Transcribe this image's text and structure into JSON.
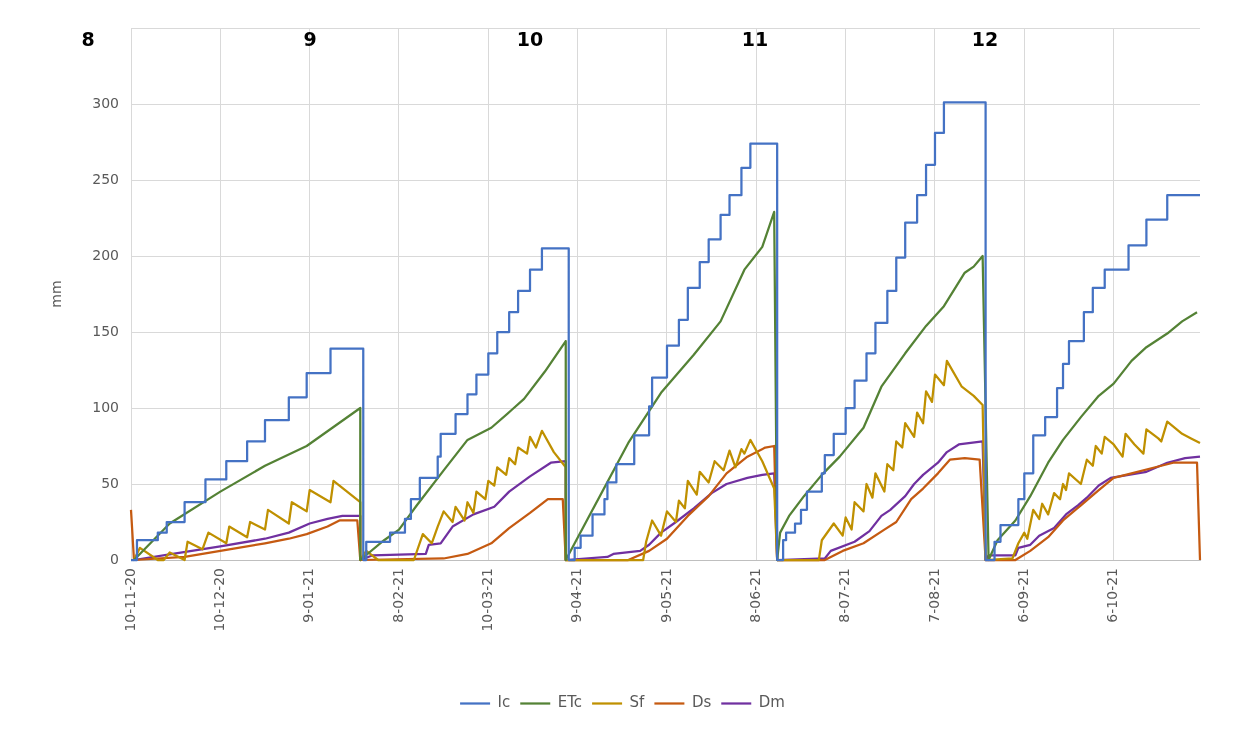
{
  "chart_data": {
    "type": "line",
    "ylabel": "mm",
    "ylim": [
      0,
      350
    ],
    "yticks": [
      0,
      50,
      100,
      150,
      200,
      250,
      300,
      {
        "value": 350,
        "label": null
      }
    ],
    "xlim": [
      "2020-11-10",
      "2021-11-04"
    ],
    "xticks": [
      {
        "value": "2020-11-10",
        "label": "10-11-20"
      },
      {
        "value": "2020-12-10",
        "label": "10-12-20"
      },
      {
        "value": "2021-01-09",
        "label": "9-01-21"
      },
      {
        "value": "2021-02-08",
        "label": "8-02-21"
      },
      {
        "value": "2021-03-10",
        "label": "10-03-21"
      },
      {
        "value": "2021-04-09",
        "label": "9-04-21"
      },
      {
        "value": "2021-05-09",
        "label": "9-05-21"
      },
      {
        "value": "2021-06-08",
        "label": "8-06-21"
      },
      {
        "value": "2021-07-08",
        "label": "8-07-21"
      },
      {
        "value": "2021-08-07",
        "label": "7-08-21"
      },
      {
        "value": "2021-09-06",
        "label": "6-09-21"
      },
      {
        "value": "2021-10-06",
        "label": "6-10-21"
      }
    ],
    "grid": true,
    "legend": "bottom",
    "marker": "none",
    "annotations": [
      "8",
      "9",
      "10",
      "11",
      "12"
    ],
    "series": [
      {
        "name": "Ic",
        "type": "step",
        "color": "#4472c4",
        "x": [
          "2020-11-10",
          "2020-11-12",
          "2020-11-19",
          "2020-11-22",
          "2020-11-28",
          "2020-12-05",
          "2020-12-12",
          "2020-12-19",
          "2020-12-25",
          "2021-01-02",
          "2021-01-08",
          "2021-01-16",
          "2021-01-26",
          "2021-01-27",
          "2021-01-28",
          "2021-02-05",
          "2021-02-10",
          "2021-02-12",
          "2021-02-15",
          "2021-02-21",
          "2021-02-22",
          "2021-02-27",
          "2021-03-03",
          "2021-03-06",
          "2021-03-10",
          "2021-03-13",
          "2021-03-17",
          "2021-03-20",
          "2021-03-24",
          "2021-03-28",
          "2021-04-05",
          "2021-04-06",
          "2021-04-08",
          "2021-04-10",
          "2021-04-14",
          "2021-04-18",
          "2021-04-19",
          "2021-04-22",
          "2021-04-28",
          "2021-05-03",
          "2021-05-04",
          "2021-05-09",
          "2021-05-13",
          "2021-05-16",
          "2021-05-20",
          "2021-05-23",
          "2021-05-27",
          "2021-05-30",
          "2021-06-03",
          "2021-06-06",
          "2021-06-14",
          "2021-06-15",
          "2021-06-17",
          "2021-06-18",
          "2021-06-21",
          "2021-06-23",
          "2021-06-25",
          "2021-06-30",
          "2021-07-01",
          "2021-07-04",
          "2021-07-08",
          "2021-07-11",
          "2021-07-15",
          "2021-07-18",
          "2021-07-22",
          "2021-07-25",
          "2021-07-28",
          "2021-08-01",
          "2021-08-04",
          "2021-08-07",
          "2021-08-10",
          "2021-08-23",
          "2021-08-24",
          "2021-08-27",
          "2021-08-29",
          "2021-09-04",
          "2021-09-06",
          "2021-09-09",
          "2021-09-13",
          "2021-09-17",
          "2021-09-19",
          "2021-09-21",
          "2021-09-26",
          "2021-09-29",
          "2021-10-03",
          "2021-10-11",
          "2021-10-17",
          "2021-10-24",
          "2021-11-04"
        ],
        "values": [
          0,
          13,
          18,
          25,
          38,
          53,
          65,
          78,
          92,
          107,
          123,
          139,
          139,
          0,
          12,
          18,
          27,
          40,
          54,
          68,
          83,
          96,
          109,
          122,
          136,
          150,
          163,
          177,
          191,
          205,
          205,
          0,
          8,
          16,
          30,
          40,
          51,
          63,
          82,
          101,
          120,
          141,
          158,
          179,
          196,
          211,
          227,
          240,
          258,
          274,
          274,
          0,
          13,
          18,
          24,
          33,
          45,
          57,
          69,
          83,
          100,
          118,
          136,
          156,
          177,
          199,
          222,
          240,
          260,
          281,
          301,
          301,
          0,
          12,
          23,
          40,
          57,
          82,
          94,
          113,
          129,
          144,
          163,
          179,
          191,
          207,
          224,
          240,
          240
        ]
      },
      {
        "name": "ETc",
        "color": "#548235",
        "x": [
          "2020-11-11",
          "2020-11-23",
          "2020-12-10",
          "2020-12-25",
          "2021-01-08",
          "2021-01-26",
          "2021-01-26",
          "2021-02-03",
          "2021-02-08",
          "2021-02-14",
          "2021-02-23",
          "2021-03-03",
          "2021-03-11",
          "2021-03-18",
          "2021-03-22",
          "2021-03-29",
          "2021-04-05",
          "2021-04-05",
          "2021-04-14",
          "2021-04-26",
          "2021-05-07",
          "2021-05-18",
          "2021-05-27",
          "2021-06-04",
          "2021-06-10",
          "2021-06-14",
          "2021-06-15",
          "2021-06-16",
          "2021-06-19",
          "2021-06-24",
          "2021-06-30",
          "2021-07-06",
          "2021-07-14",
          "2021-07-20",
          "2021-07-28",
          "2021-08-04",
          "2021-08-10",
          "2021-08-17",
          "2021-08-20",
          "2021-08-23",
          "2021-08-25",
          "2021-08-28",
          "2021-09-03",
          "2021-09-08",
          "2021-09-14",
          "2021-09-19",
          "2021-09-25",
          "2021-10-01",
          "2021-10-06",
          "2021-10-12",
          "2021-10-17",
          "2021-10-24",
          "2021-10-29",
          "2021-11-03"
        ],
        "values": [
          0,
          24,
          45,
          62,
          75,
          100,
          0,
          13,
          20,
          36,
          59,
          79,
          87,
          99,
          106,
          124,
          144,
          0,
          33,
          77,
          110,
          135,
          157,
          191,
          206,
          229,
          0,
          18,
          29,
          42,
          56,
          68,
          87,
          114,
          136,
          154,
          167,
          189,
          193,
          200,
          0,
          13,
          26,
          42,
          64,
          79,
          94,
          108,
          116,
          131,
          140,
          149,
          157,
          163
        ]
      },
      {
        "name": "Sf",
        "color": "#bf9000",
        "x": [
          "2020-11-11",
          "2020-11-13",
          "2020-11-19",
          "2020-11-21",
          "2020-11-23",
          "2020-11-28",
          "2020-11-29",
          "2020-12-04",
          "2020-12-06",
          "2020-12-12",
          "2020-12-13",
          "2020-12-19",
          "2020-12-20",
          "2020-12-25",
          "2020-12-26",
          "2021-01-02",
          "2021-01-03",
          "2021-01-08",
          "2021-01-09",
          "2021-01-16",
          "2021-01-17",
          "2021-01-26",
          "2021-01-26",
          "2021-01-28",
          "2021-02-01",
          "2021-02-13",
          "2021-02-16",
          "2021-02-19",
          "2021-02-21",
          "2021-02-23",
          "2021-02-26",
          "2021-02-27",
          "2021-03-02",
          "2021-03-03",
          "2021-03-05",
          "2021-03-06",
          "2021-03-09",
          "2021-03-10",
          "2021-03-12",
          "2021-03-13",
          "2021-03-16",
          "2021-03-17",
          "2021-03-19",
          "2021-03-20",
          "2021-03-23",
          "2021-03-24",
          "2021-03-26",
          "2021-03-28",
          "2021-04-01",
          "2021-04-05",
          "2021-04-05",
          "2021-05-01",
          "2021-05-02",
          "2021-05-04",
          "2021-05-07",
          "2021-05-09",
          "2021-05-12",
          "2021-05-13",
          "2021-05-15",
          "2021-05-16",
          "2021-05-19",
          "2021-05-20",
          "2021-05-23",
          "2021-05-25",
          "2021-05-28",
          "2021-05-30",
          "2021-06-01",
          "2021-06-03",
          "2021-06-04",
          "2021-06-06",
          "2021-06-10",
          "2021-06-14",
          "2021-06-15",
          "2021-06-29",
          "2021-06-30",
          "2021-07-04",
          "2021-07-07",
          "2021-07-08",
          "2021-07-10",
          "2021-07-11",
          "2021-07-14",
          "2021-07-15",
          "2021-07-17",
          "2021-07-18",
          "2021-07-21",
          "2021-07-22",
          "2021-07-24",
          "2021-07-25",
          "2021-07-27",
          "2021-07-28",
          "2021-07-31",
          "2021-08-01",
          "2021-08-03",
          "2021-08-04",
          "2021-08-06",
          "2021-08-07",
          "2021-08-10",
          "2021-08-11",
          "2021-08-16",
          "2021-08-20",
          "2021-08-23",
          "2021-08-24",
          "2021-09-02",
          "2021-09-04",
          "2021-09-06",
          "2021-09-07",
          "2021-09-09",
          "2021-09-11",
          "2021-09-12",
          "2021-09-14",
          "2021-09-16",
          "2021-09-18",
          "2021-09-19",
          "2021-09-20",
          "2021-09-21",
          "2021-09-25",
          "2021-09-27",
          "2021-09-29",
          "2021-09-30",
          "2021-10-02",
          "2021-10-03",
          "2021-10-06",
          "2021-10-09",
          "2021-10-10",
          "2021-10-13",
          "2021-10-16",
          "2021-10-17",
          "2021-10-21",
          "2021-10-22",
          "2021-10-24",
          "2021-10-29",
          "2021-11-01",
          "2021-11-04"
        ],
        "values": [
          0,
          8,
          0,
          0,
          5,
          0,
          12,
          7,
          18,
          11,
          22,
          15,
          25,
          20,
          33,
          24,
          38,
          32,
          46,
          38,
          52,
          38,
          0,
          6,
          0,
          0,
          17,
          11,
          22,
          32,
          25,
          35,
          26,
          38,
          31,
          45,
          40,
          52,
          49,
          61,
          56,
          67,
          63,
          74,
          70,
          81,
          74,
          85,
          71,
          61,
          0,
          0,
          12,
          26,
          16,
          32,
          25,
          39,
          34,
          52,
          43,
          58,
          51,
          65,
          59,
          72,
          61,
          73,
          70,
          79,
          65,
          47,
          0,
          0,
          13,
          24,
          16,
          28,
          20,
          38,
          32,
          50,
          41,
          57,
          45,
          63,
          59,
          78,
          74,
          90,
          81,
          97,
          90,
          111,
          104,
          122,
          115,
          131,
          114,
          108,
          102,
          0,
          1,
          11,
          18,
          14,
          33,
          27,
          37,
          30,
          44,
          40,
          50,
          46,
          57,
          50,
          66,
          62,
          75,
          70,
          81,
          76,
          68,
          83,
          76,
          70,
          86,
          80,
          78,
          91,
          83,
          80,
          77
        ]
      },
      {
        "name": "Ds",
        "color": "#c55a11",
        "x": [
          "2020-11-10",
          "2020-11-11",
          "2020-11-28",
          "2020-12-10",
          "2020-12-25",
          "2021-01-02",
          "2021-01-08",
          "2021-01-15",
          "2021-01-19",
          "2021-01-25",
          "2021-01-26",
          "2021-02-23",
          "2021-03-03",
          "2021-03-11",
          "2021-03-17",
          "2021-03-24",
          "2021-03-30",
          "2021-04-04",
          "2021-04-05",
          "2021-04-26",
          "2021-05-03",
          "2021-05-09",
          "2021-05-16",
          "2021-05-23",
          "2021-05-29",
          "2021-06-05",
          "2021-06-11",
          "2021-06-14",
          "2021-06-15",
          "2021-07-01",
          "2021-07-07",
          "2021-07-14",
          "2021-07-21",
          "2021-07-25",
          "2021-07-30",
          "2021-08-03",
          "2021-08-08",
          "2021-08-12",
          "2021-08-17",
          "2021-08-22",
          "2021-08-24",
          "2021-09-03",
          "2021-09-08",
          "2021-09-14",
          "2021-09-19",
          "2021-09-25",
          "2021-10-01",
          "2021-10-06",
          "2021-10-12",
          "2021-10-20",
          "2021-10-26",
          "2021-11-03",
          "2021-11-04"
        ],
        "values": [
          33,
          0,
          2,
          6,
          11,
          14,
          17,
          22,
          26,
          26,
          0,
          1,
          4,
          11,
          21,
          31,
          40,
          40,
          0,
          0,
          6,
          14,
          29,
          42,
          57,
          68,
          74,
          75,
          0,
          0,
          6,
          11,
          20,
          25,
          40,
          47,
          57,
          66,
          67,
          66,
          0,
          0,
          6,
          15,
          26,
          36,
          46,
          54,
          57,
          61,
          64,
          64,
          0
        ]
      },
      {
        "name": "Dm",
        "color": "#7030a0",
        "x": [
          "2020-11-11",
          "2020-11-24",
          "2020-12-10",
          "2020-12-25",
          "2021-01-02",
          "2021-01-09",
          "2021-01-15",
          "2021-01-20",
          "2021-01-26",
          "2021-01-26",
          "2021-01-30",
          "2021-02-17",
          "2021-02-18",
          "2021-02-22",
          "2021-02-26",
          "2021-03-05",
          "2021-03-12",
          "2021-03-17",
          "2021-03-24",
          "2021-03-31",
          "2021-04-05",
          "2021-04-05",
          "2021-04-19",
          "2021-04-21",
          "2021-04-30",
          "2021-05-03",
          "2021-05-07",
          "2021-05-12",
          "2021-05-18",
          "2021-05-24",
          "2021-05-29",
          "2021-06-05",
          "2021-06-10",
          "2021-06-14",
          "2021-06-15",
          "2021-07-01",
          "2021-07-03",
          "2021-07-11",
          "2021-07-16",
          "2021-07-20",
          "2021-07-23",
          "2021-07-28",
          "2021-07-31",
          "2021-08-03",
          "2021-08-08",
          "2021-08-11",
          "2021-08-15",
          "2021-08-19",
          "2021-08-23",
          "2021-08-24",
          "2021-08-25",
          "2021-09-03",
          "2021-09-04",
          "2021-09-08",
          "2021-09-11",
          "2021-09-16",
          "2021-09-20",
          "2021-09-24",
          "2021-09-27",
          "2021-10-01",
          "2021-10-05",
          "2021-10-11",
          "2021-10-17",
          "2021-10-24",
          "2021-10-30",
          "2021-11-04"
        ],
        "values": [
          0,
          4,
          9,
          14,
          18,
          24,
          27,
          29,
          29,
          0,
          3,
          4,
          10,
          11,
          22,
          30,
          35,
          45,
          55,
          64,
          65,
          0,
          2,
          4,
          6,
          10,
          18,
          25,
          34,
          44,
          50,
          54,
          56,
          57,
          0,
          1,
          6,
          12,
          19,
          29,
          33,
          42,
          50,
          56,
          64,
          71,
          76,
          77,
          78,
          0,
          3,
          3,
          8,
          10,
          16,
          21,
          30,
          36,
          41,
          49,
          54,
          56,
          58,
          64,
          67,
          68
        ]
      }
    ]
  }
}
